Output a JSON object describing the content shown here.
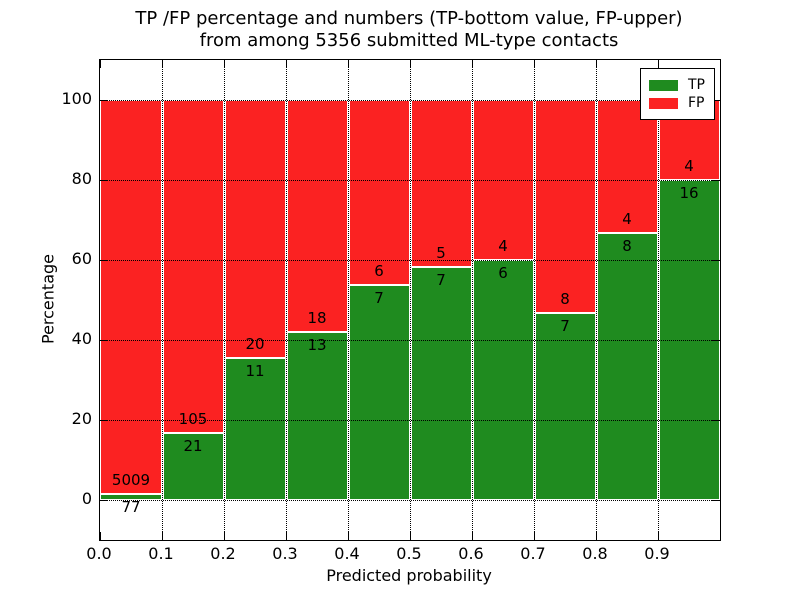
{
  "title": {
    "line1": "TP /FP percentage and numbers (TP-bottom value, FP-upper)",
    "line2": "from among 5356 submitted ML-type contacts"
  },
  "axes": {
    "xlabel": "Predicted probability",
    "ylabel": "Percentage",
    "x_tick_labels": [
      "0.0",
      "0.1",
      "0.2",
      "0.3",
      "0.4",
      "0.5",
      "0.6",
      "0.7",
      "0.8",
      "0.9"
    ],
    "y_tick_labels": [
      "0",
      "20",
      "40",
      "60",
      "80",
      "100"
    ]
  },
  "legend": {
    "items": [
      {
        "label": "TP",
        "color": "#1f8b1f"
      },
      {
        "label": "FP",
        "color": "#fb2222"
      }
    ]
  },
  "chart_data": {
    "type": "bar",
    "stacked": true,
    "title": "TP /FP percentage and numbers (TP-bottom value, FP-upper) from among 5356 submitted ML-type contacts",
    "xlabel": "Predicted probability",
    "ylabel": "Percentage",
    "total_contacts": 5356,
    "bins": [
      "0.0-0.1",
      "0.1-0.2",
      "0.2-0.3",
      "0.3-0.4",
      "0.4-0.5",
      "0.5-0.6",
      "0.6-0.7",
      "0.7-0.8",
      "0.8-0.9",
      "0.9-1.0"
    ],
    "x_tick_positions": [
      0.0,
      0.1,
      0.2,
      0.3,
      0.4,
      0.5,
      0.6,
      0.7,
      0.8,
      0.9
    ],
    "y_ticks": [
      0,
      20,
      40,
      60,
      80,
      100
    ],
    "xlim": [
      0.0,
      1.0
    ],
    "ylim": [
      -10,
      110
    ],
    "grid": true,
    "legend_position": "upper right",
    "bar_edge_color": "#ffffff",
    "series": [
      {
        "name": "TP",
        "color": "#1f8b1f",
        "counts": [
          77,
          21,
          11,
          13,
          7,
          7,
          6,
          7,
          8,
          16
        ],
        "pct": [
          1.51,
          16.67,
          35.48,
          41.94,
          53.85,
          58.33,
          60.0,
          46.67,
          66.67,
          80.0
        ]
      },
      {
        "name": "FP",
        "color": "#fb2222",
        "counts": [
          5009,
          105,
          20,
          18,
          6,
          5,
          4,
          8,
          4,
          4
        ],
        "pct": [
          98.49,
          83.33,
          64.52,
          58.06,
          46.15,
          41.67,
          40.0,
          53.33,
          33.33,
          20.0
        ]
      }
    ]
  }
}
